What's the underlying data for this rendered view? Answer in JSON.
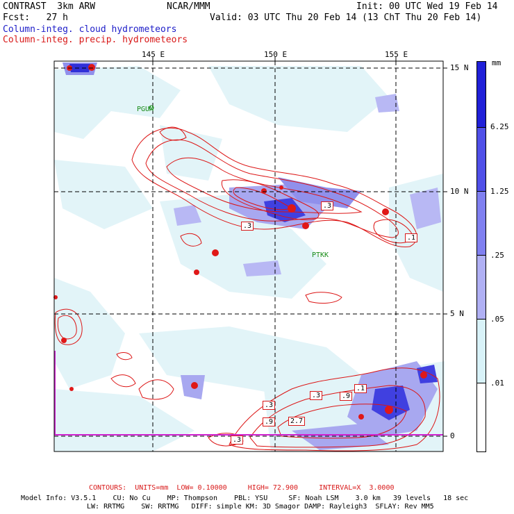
{
  "header": {
    "left_line1": "CONTRAST  3km ARW",
    "center_line1": "NCAR/MMM",
    "right_line1": "Init: 00 UTC Wed 19 Feb 14",
    "left_line2": "Fcst:   27 h",
    "right_line2": "Valid: 03 UTC Thu 20 Feb 14 (13 ChT Thu 20 Feb 14)",
    "legend_cloud": "Column-integ. cloud hydrometeors",
    "legend_precip": "Column-integ. precip. hydrometeors"
  },
  "axes": {
    "lon_labels": [
      "145 E",
      "150 E",
      "155 E"
    ],
    "lat_labels": [
      "15 N",
      "10 N",
      "5 N",
      "0"
    ]
  },
  "stations": [
    "PGUM",
    "PTKK"
  ],
  "contour_labels": [
    ".3",
    ".3",
    ".1",
    ".3",
    ".9",
    ".1",
    ".3",
    ".9",
    "2.7",
    ".3"
  ],
  "colorbar": {
    "unit": "mm",
    "labels": [
      "6.25",
      "1.25",
      ".25",
      ".05",
      ".01"
    ],
    "colors": [
      "#2020d8",
      "#5050e8",
      "#8080f0",
      "#b0b0f4",
      "#d8f2f8",
      "#ffffff"
    ]
  },
  "footer": {
    "contours": "CONTOURS:  UNITS=mm  LOW= 0.10000     HIGH= 72.900     INTERVAL=X  3.0000",
    "model_line1": "Model Info: V3.5.1    CU: No Cu    MP: Thompson    PBL: YSU     SF: Noah LSM    3.0 km   39 levels   18 sec",
    "model_line2": "LW: RRTMG    SW: RRTMG   DIFF: simple KM: 3D Smagor DAMP: Rayleigh3  SFLAY: Rev MM5"
  }
}
